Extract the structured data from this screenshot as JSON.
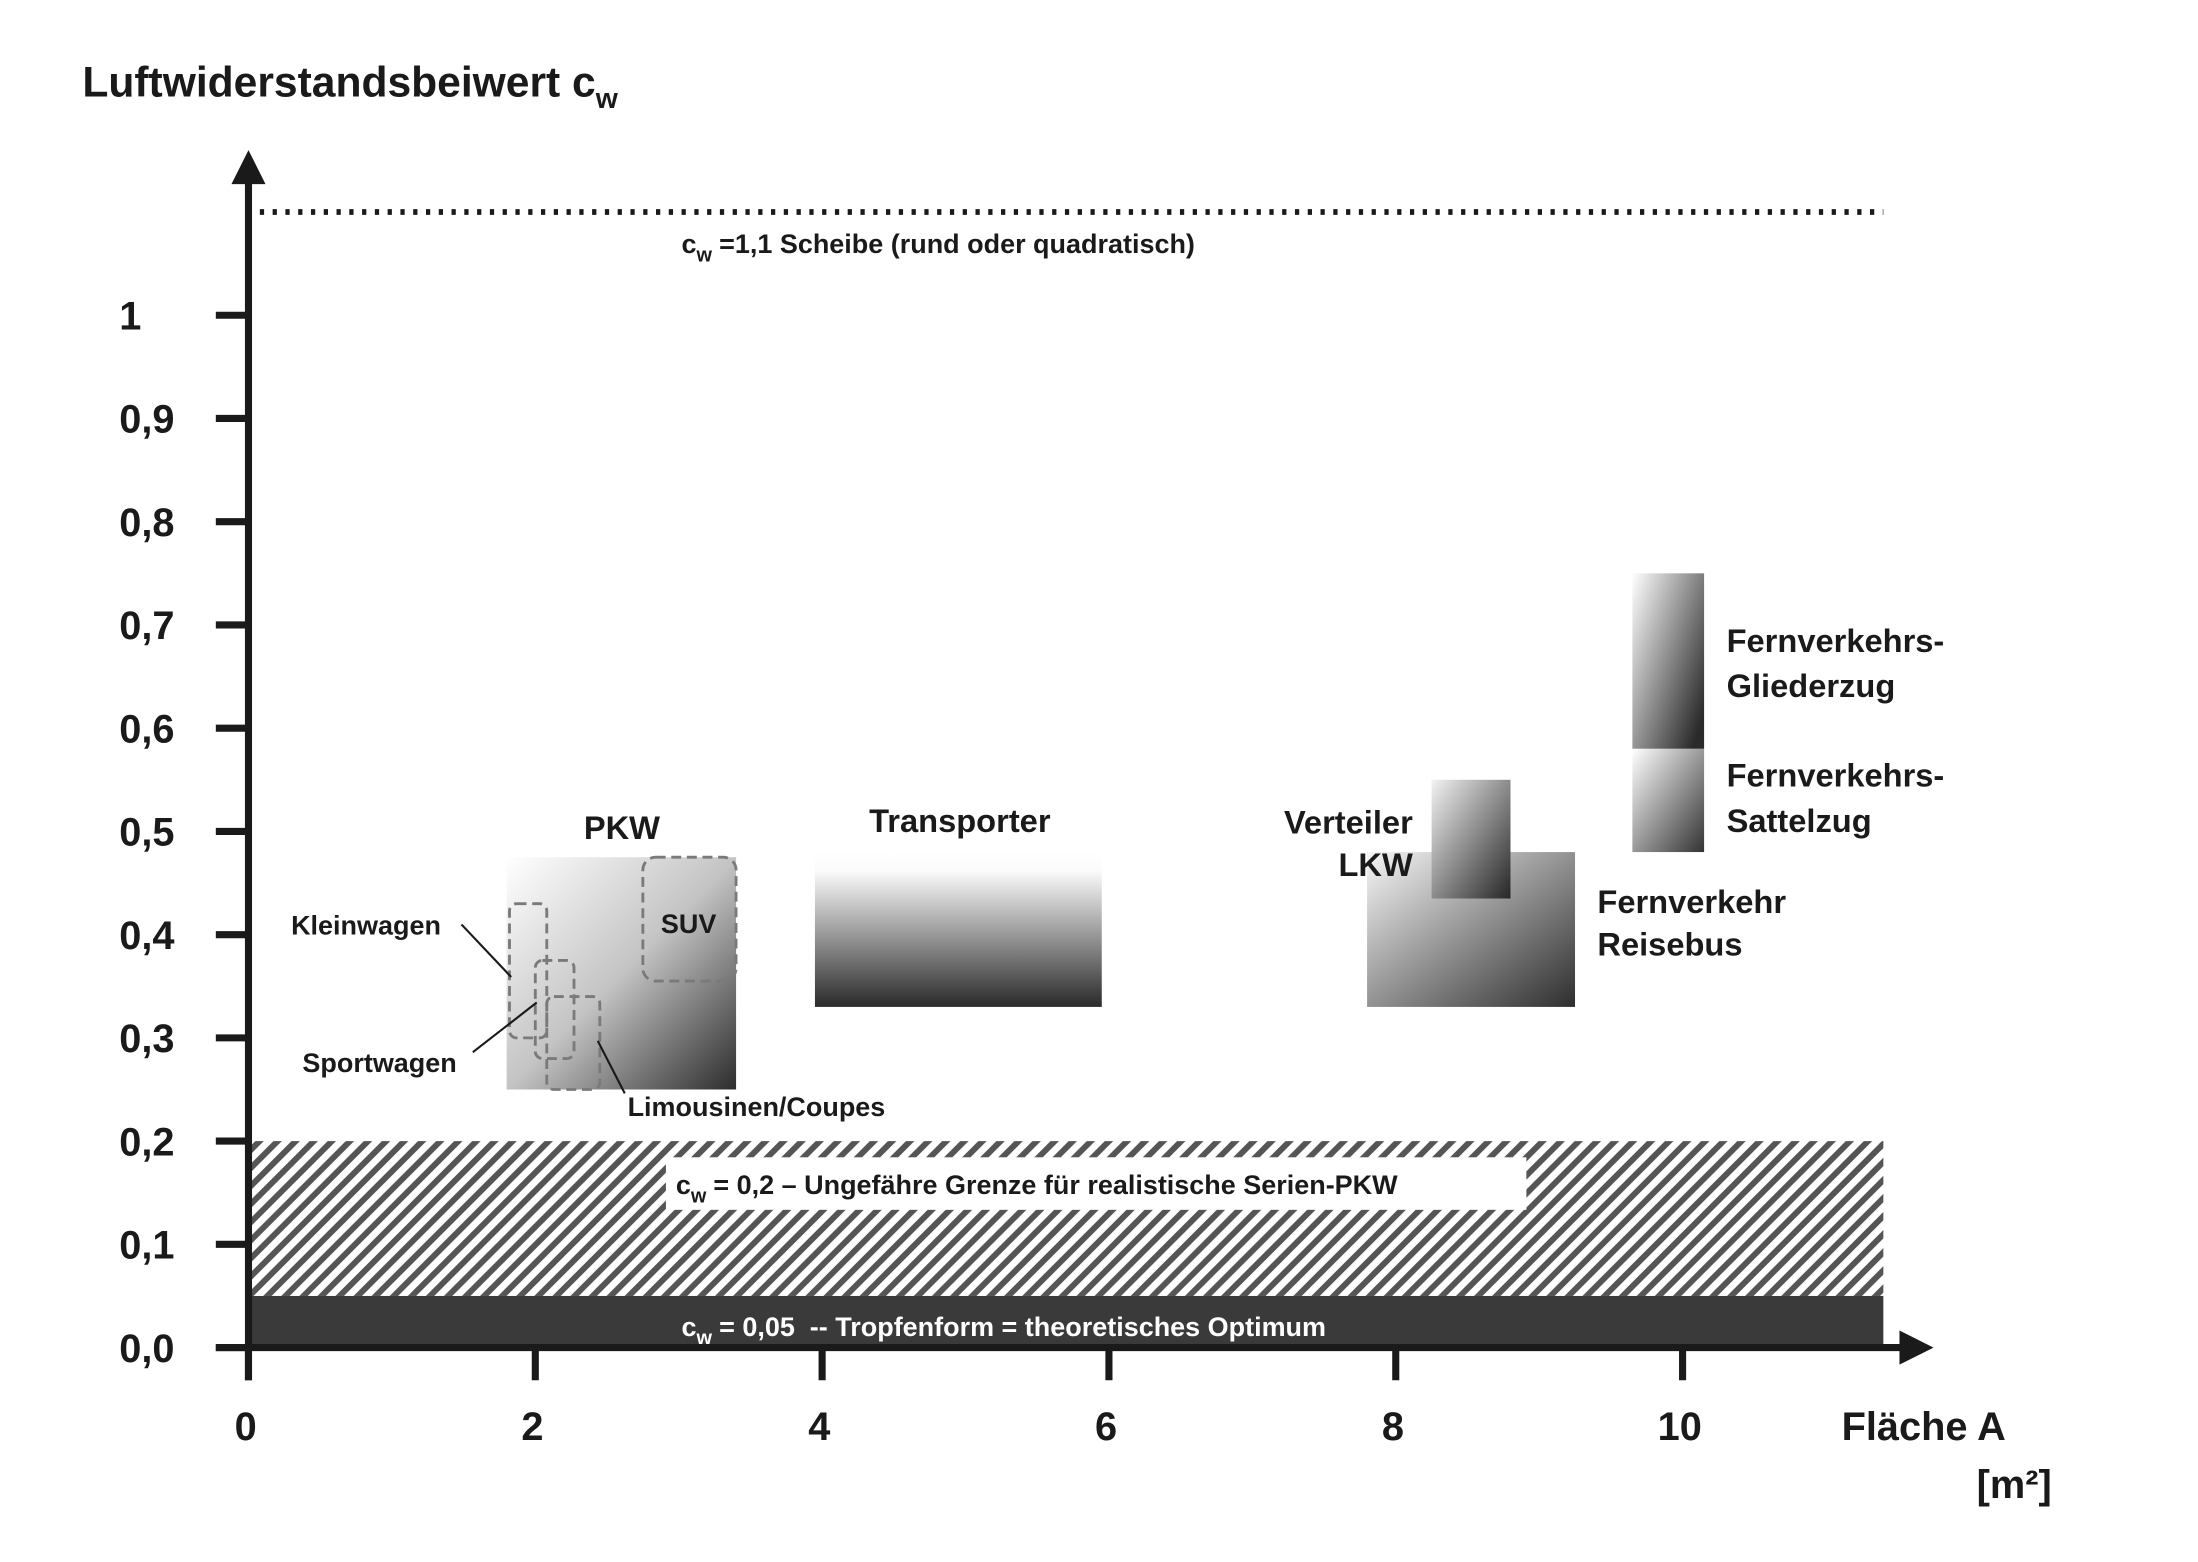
{
  "chart_data": {
    "type": "area",
    "ylabel": "Luftwiderstandsbeiwert c",
    "ylabel_subscript": "w",
    "xlabel": "Fläche A",
    "xlabel_unit": "[m²]",
    "xlim": [
      0,
      11.75
    ],
    "ylim": [
      0,
      1.16
    ],
    "grid": false,
    "x_ticks": [
      0,
      2,
      4,
      6,
      8,
      10
    ],
    "x_tick_labels": [
      "0",
      "2",
      "4",
      "6",
      "8",
      "10"
    ],
    "y_ticks": [
      0,
      0.1,
      0.2,
      0.3,
      0.4,
      0.5,
      0.6,
      0.7,
      0.8,
      0.9,
      1
    ],
    "y_tick_labels": [
      "0,0",
      "0,1",
      "0,2",
      "0,3",
      "0,4",
      "0,5",
      "0,6",
      "0,7",
      "0,8",
      "0,9",
      "1"
    ],
    "reference_lines": [
      {
        "cw": 1.1,
        "area": [
          0,
          11.4
        ],
        "symbol": "c",
        "subscript": "w",
        "text": "=1,1 Scheibe (rund oder quadratisch)"
      }
    ],
    "bands": [
      {
        "cw": [
          0.05,
          0.2
        ],
        "area": [
          0,
          11.4
        ],
        "symbol": "c",
        "subscript": "w",
        "text": "= 0,2 – Ungefähre Grenze für realistische Serien-PKW"
      },
      {
        "cw": [
          0,
          0.05
        ],
        "area": [
          0,
          11.4
        ],
        "symbol": "c",
        "subscript": "w",
        "text": "= 0,05  -- Tropfenform = theoretisches Optimum"
      }
    ],
    "regions": [
      {
        "label_lines": [
          "PKW"
        ],
        "area": [
          1.8,
          3.4
        ],
        "cw": [
          0.25,
          0.475
        ]
      },
      {
        "label_lines": [
          "Transporter"
        ],
        "area": [
          3.95,
          5.95
        ],
        "cw": [
          0.33,
          0.48
        ]
      },
      {
        "label_lines": [
          "Fernverkehr",
          "Reisebus"
        ],
        "area": [
          7.8,
          9.25
        ],
        "cw": [
          0.33,
          0.48
        ]
      },
      {
        "label_lines": [
          "Verteiler",
          "LKW"
        ],
        "area": [
          8.25,
          8.8
        ],
        "cw": [
          0.435,
          0.55
        ]
      },
      {
        "label_lines": [
          "Fernverkehrs-",
          "Gliederzug"
        ],
        "area": [
          9.65,
          10.15
        ],
        "cw": [
          0.58,
          0.75
        ]
      },
      {
        "label_lines": [
          "Fernverkehrs-",
          "Sattelzug"
        ],
        "area": [
          9.65,
          10.15
        ],
        "cw": [
          0.48,
          0.58
        ]
      }
    ],
    "subregions": [
      {
        "label": "Kleinwagen",
        "area": [
          1.82,
          2.08
        ],
        "cw": [
          0.3,
          0.43
        ]
      },
      {
        "label": "Sportwagen",
        "area": [
          2.0,
          2.27
        ],
        "cw": [
          0.28,
          0.375
        ]
      },
      {
        "label": "Limousinen/Coupes",
        "area": [
          2.08,
          2.45
        ],
        "cw": [
          0.25,
          0.34
        ]
      },
      {
        "label": "SUV",
        "area": [
          2.75,
          3.4
        ],
        "cw": [
          0.355,
          0.475
        ]
      }
    ]
  }
}
